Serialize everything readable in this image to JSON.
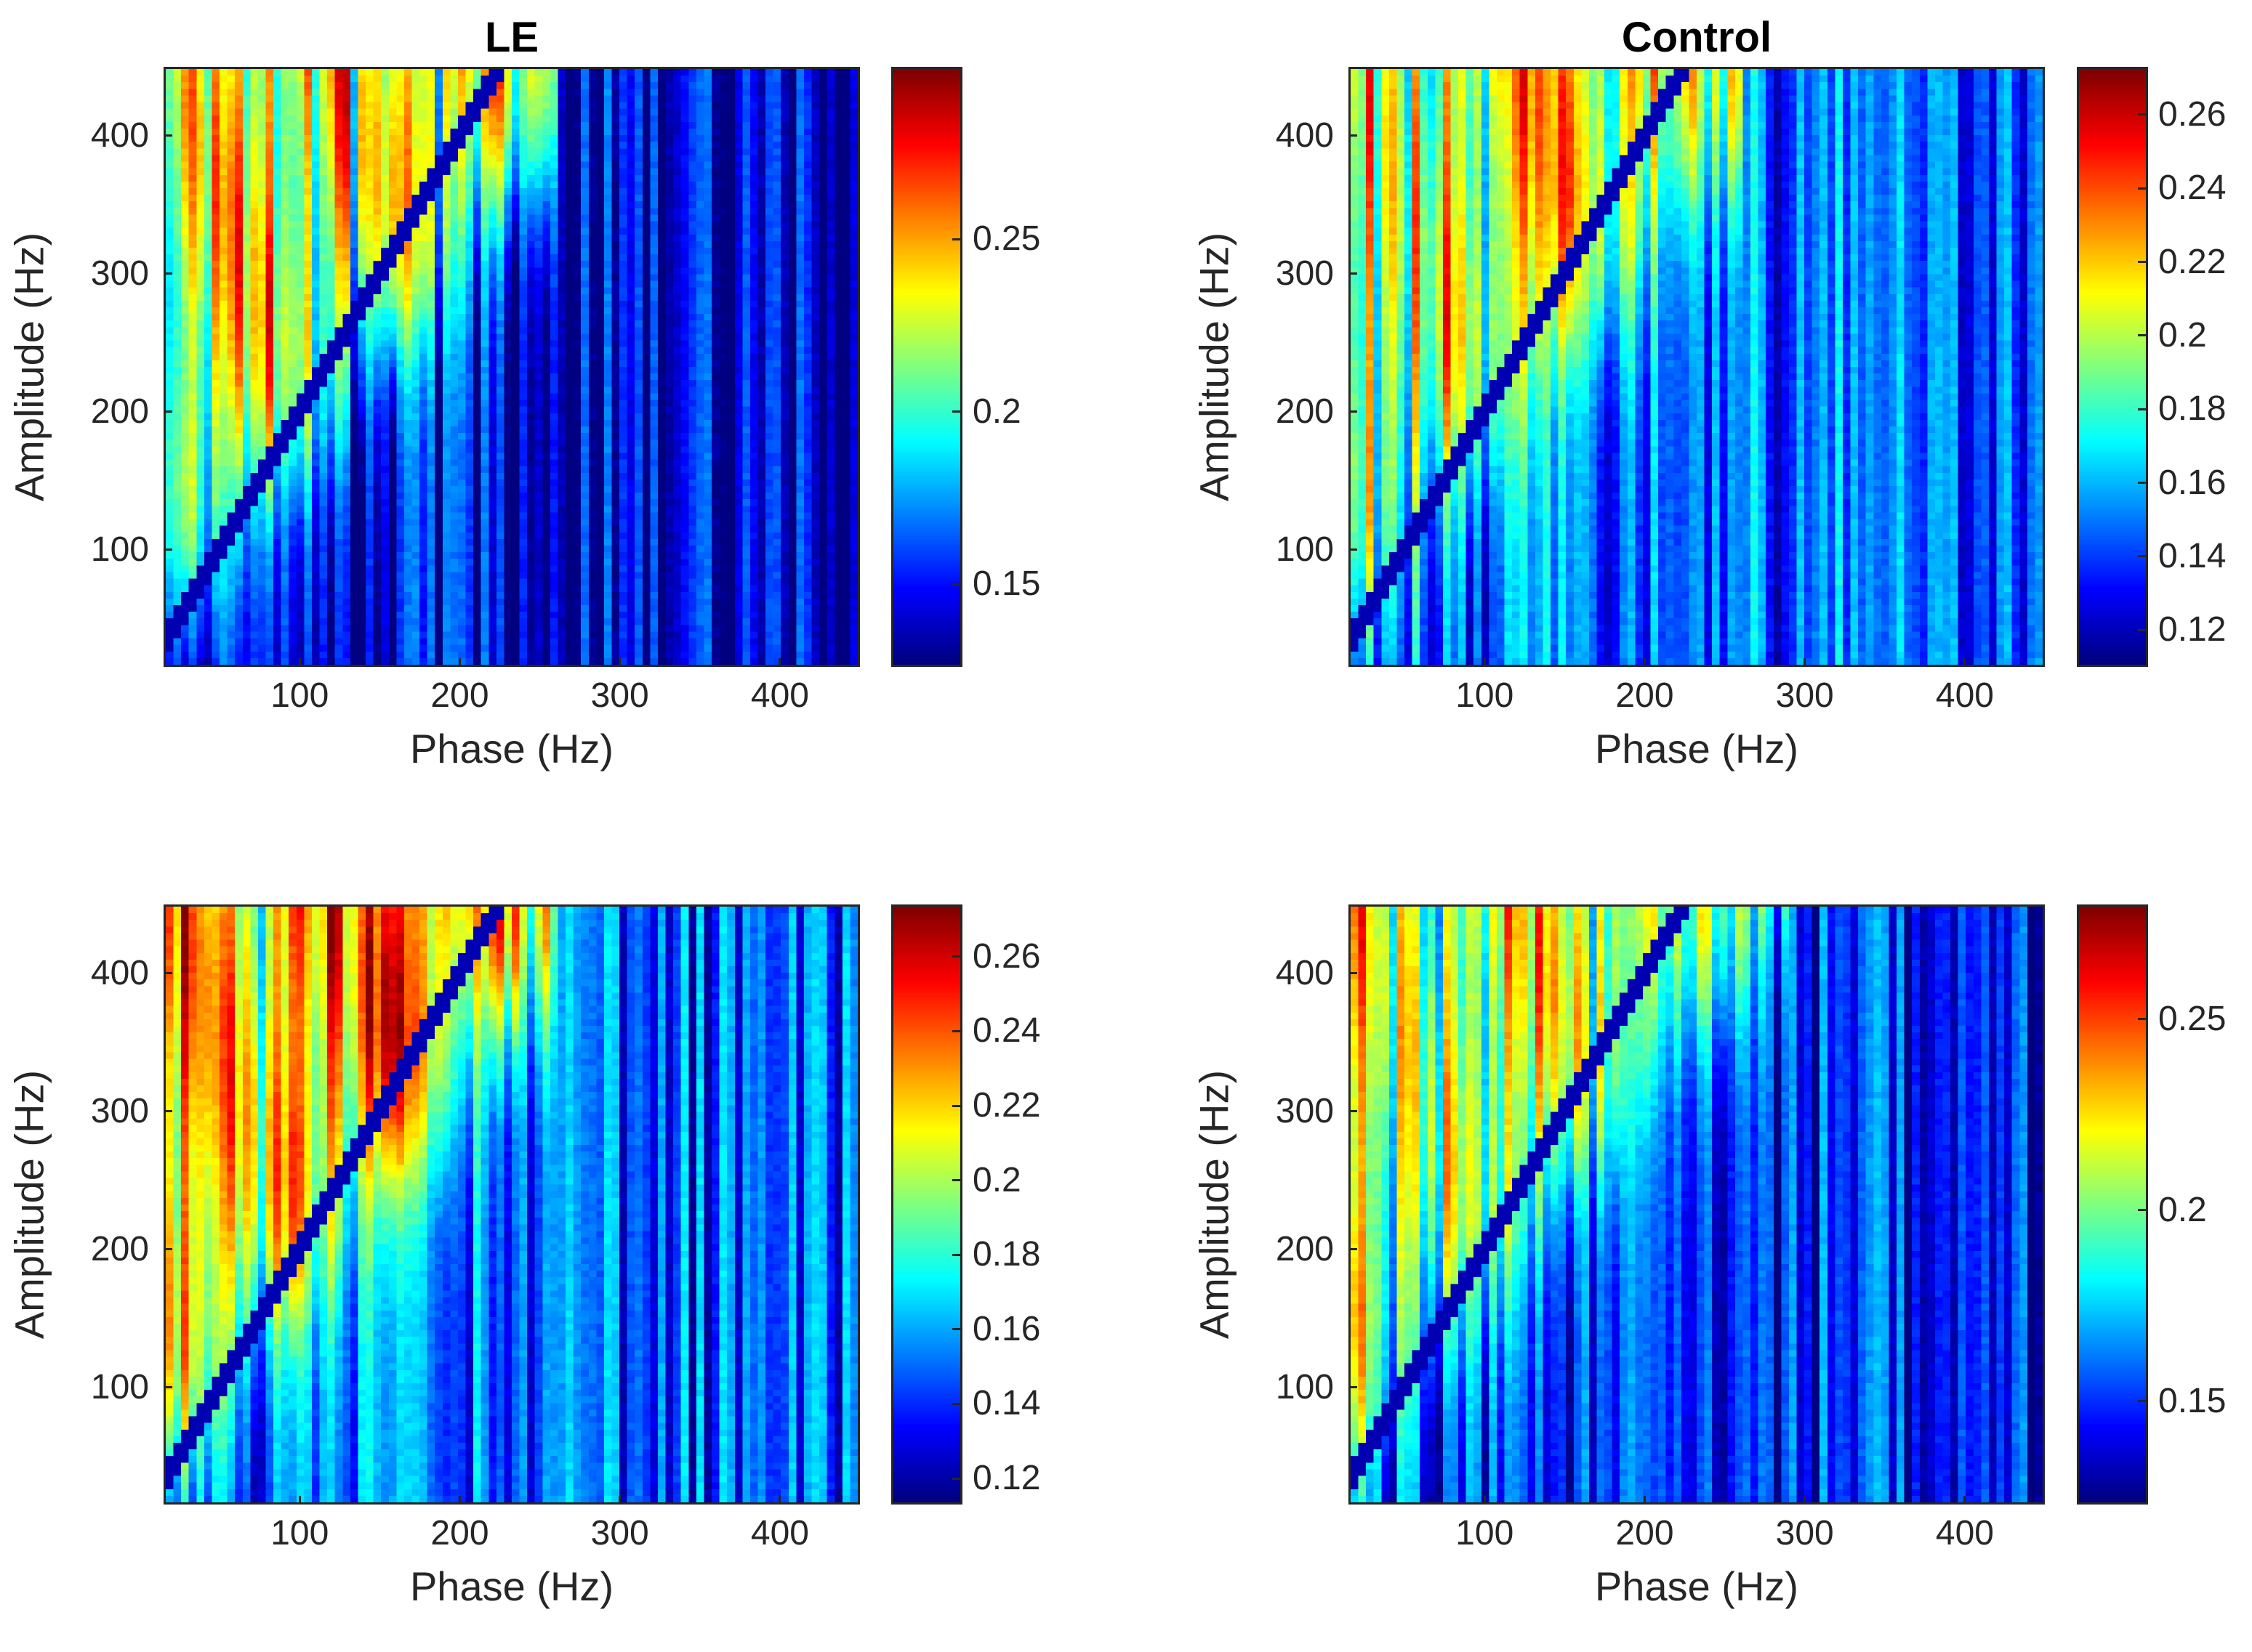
{
  "chart_data": [
    {
      "type": "heatmap",
      "panel": "top-left",
      "title": "LE",
      "xlabel": "Phase (Hz)",
      "ylabel": "Amplitude (Hz)",
      "xlim": [
        15,
        450
      ],
      "ylim": [
        15,
        450
      ],
      "xticks": [
        100,
        200,
        300,
        400
      ],
      "yticks": [
        100,
        200,
        300,
        400
      ],
      "clim": [
        0.126,
        0.3
      ],
      "cticks": [
        0.15,
        0.2,
        0.25
      ],
      "colormap": "jet",
      "values_summary": {
        "above_diagonal_max": 0.29,
        "below_diagonal_typical": 0.14,
        "transition_line_phase_hz": [
          40,
          240
        ],
        "transition_line_amplitude_hz": [
          90,
          370
        ]
      }
    },
    {
      "type": "heatmap",
      "panel": "top-right",
      "title": "Control",
      "xlabel": "Phase (Hz)",
      "ylabel": "Amplitude (Hz)",
      "xlim": [
        15,
        450
      ],
      "ylim": [
        15,
        450
      ],
      "xticks": [
        100,
        200,
        300,
        400
      ],
      "yticks": [
        100,
        200,
        300,
        400
      ],
      "clim": [
        0.11,
        0.273
      ],
      "cticks": [
        0.12,
        0.14,
        0.16,
        0.18,
        0.2,
        0.22,
        0.24,
        0.26
      ],
      "colormap": "jet",
      "values_summary": {
        "above_diagonal_max": 0.25,
        "below_diagonal_typical": 0.145,
        "transition_line_phase_hz": [
          40,
          240
        ],
        "transition_line_amplitude_hz": [
          100,
          370
        ]
      }
    },
    {
      "type": "heatmap",
      "panel": "bottom-left",
      "title": "",
      "xlabel": "Phase (Hz)",
      "ylabel": "Amplitude (Hz)",
      "xlim": [
        15,
        450
      ],
      "ylim": [
        15,
        450
      ],
      "xticks": [
        100,
        200,
        300,
        400
      ],
      "yticks": [
        100,
        200,
        300,
        400
      ],
      "clim": [
        0.113,
        0.274
      ],
      "cticks": [
        0.12,
        0.14,
        0.16,
        0.18,
        0.2,
        0.22,
        0.24,
        0.26
      ],
      "colormap": "jet",
      "values_summary": {
        "above_diagonal_max": 0.272,
        "below_diagonal_typical": 0.145,
        "transition_line_phase_hz": [
          40,
          240
        ],
        "transition_line_amplitude_hz": [
          90,
          380
        ]
      }
    },
    {
      "type": "heatmap",
      "panel": "bottom-right",
      "title": "",
      "xlabel": "Phase (Hz)",
      "ylabel": "Amplitude (Hz)",
      "xlim": [
        15,
        450
      ],
      "ylim": [
        15,
        450
      ],
      "xticks": [
        100,
        200,
        300,
        400
      ],
      "yticks": [
        100,
        200,
        300,
        400
      ],
      "clim": [
        0.123,
        0.28
      ],
      "cticks": [
        0.15,
        0.2,
        0.25
      ],
      "colormap": "jet",
      "values_summary": {
        "above_diagonal_max": 0.245,
        "below_diagonal_typical": 0.145,
        "transition_line_phase_hz": [
          40,
          270
        ],
        "transition_line_amplitude_hz": [
          90,
          420
        ]
      }
    }
  ]
}
